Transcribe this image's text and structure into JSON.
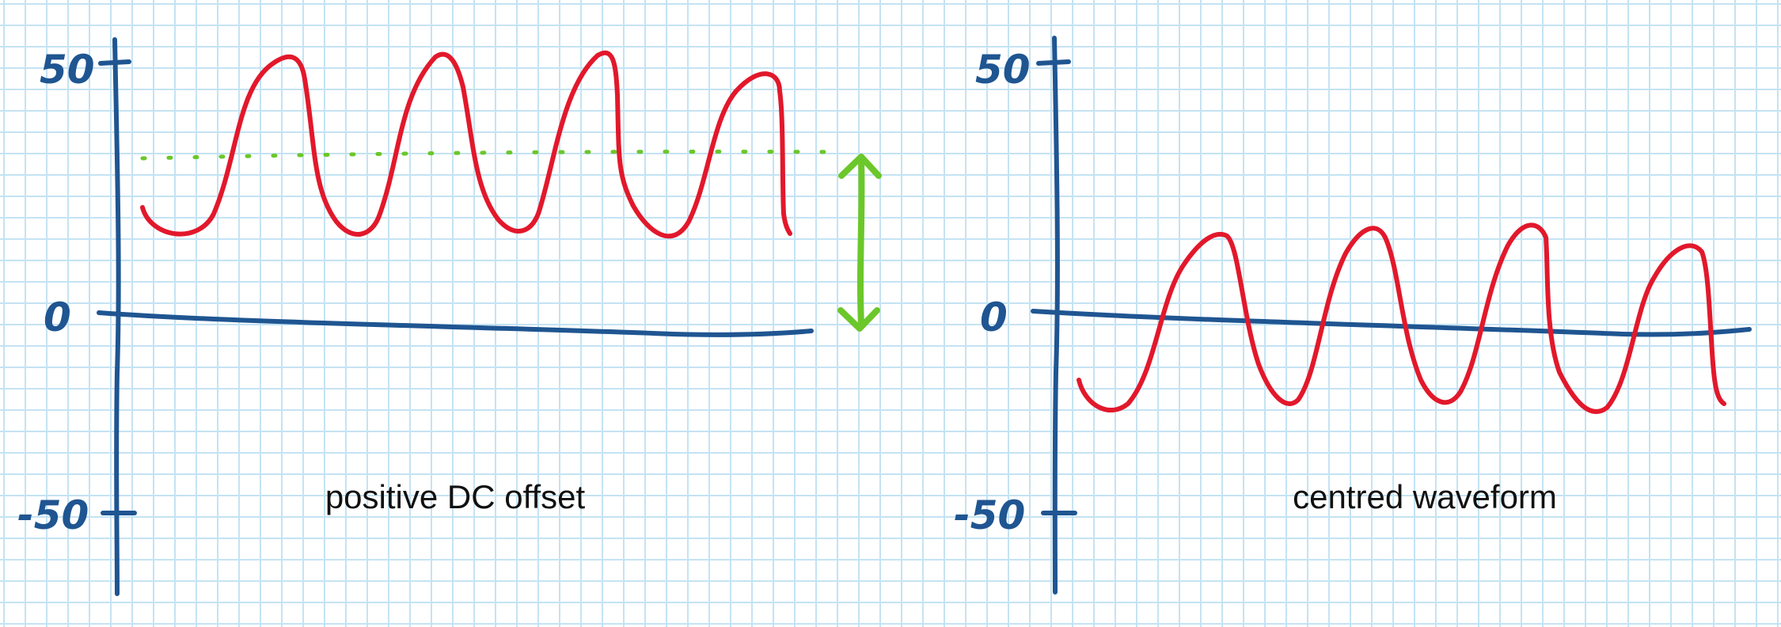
{
  "panels": [
    {
      "caption": "positive DC offset",
      "y_ticks": [
        "50",
        "0",
        "-50"
      ],
      "waveform_color": "#e2182b",
      "offset_line_color": "#6bc72a"
    },
    {
      "caption": "centred waveform",
      "y_ticks": [
        "50",
        "0",
        "-50"
      ],
      "waveform_color": "#e2182b"
    }
  ],
  "axis_color": "#1f5591"
}
